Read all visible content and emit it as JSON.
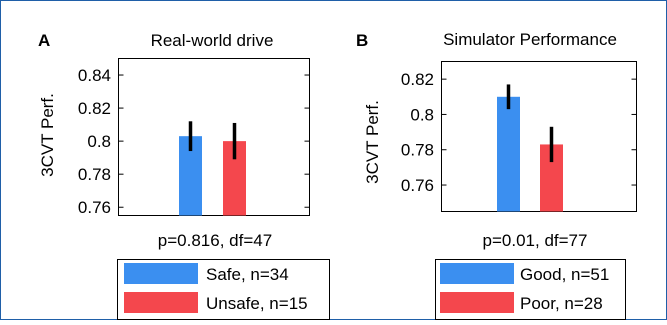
{
  "chart_data": [
    {
      "panel": "A",
      "type": "bar",
      "title": "Real-world drive",
      "ylabel": "3CVT Perf.",
      "ylim": [
        0.755,
        0.85
      ],
      "yticks": [
        "0.84",
        "0.82",
        "0.8",
        "0.78",
        "0.76"
      ],
      "ytick_values": [
        0.84,
        0.82,
        0.8,
        0.78,
        0.76
      ],
      "grid": false,
      "categories": [
        "Safe",
        "Unsafe"
      ],
      "values": [
        0.803,
        0.8
      ],
      "errors": [
        0.009,
        0.011
      ],
      "colors": [
        "#3b8ff0",
        "#f4474d"
      ],
      "stat_text": "p=0.816, df=47",
      "legend_position": "bottom",
      "legend": [
        "Safe, n=34",
        "Unsafe, n=15"
      ]
    },
    {
      "panel": "B",
      "type": "bar",
      "title": "Simulator Performance",
      "ylabel": "3CVT Perf.",
      "ylim": [
        0.745,
        0.83
      ],
      "yticks": [
        "0.82",
        "0.8",
        "0.78",
        "0.76"
      ],
      "ytick_values": [
        0.82,
        0.8,
        0.78,
        0.76
      ],
      "grid": false,
      "categories": [
        "Good",
        "Poor"
      ],
      "values": [
        0.81,
        0.783
      ],
      "errors": [
        0.007,
        0.01
      ],
      "colors": [
        "#3b8ff0",
        "#f4474d"
      ],
      "stat_text": "p=0.01, df=77",
      "legend_position": "bottom",
      "legend": [
        "Good, n=51",
        "Poor, n=28"
      ]
    }
  ]
}
